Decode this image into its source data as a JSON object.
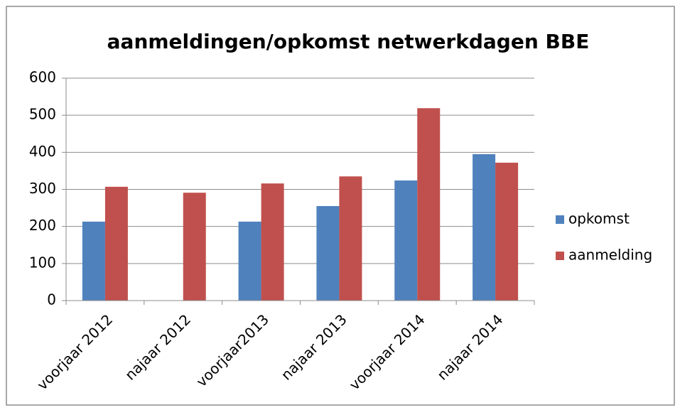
{
  "chart_data": {
    "type": "bar",
    "title": "aanmeldingen/opkomst netwerkdagen BBE",
    "categories": [
      "voorjaar 2012",
      "najaar 2012",
      "voorjaar2013",
      "najaar 2013",
      "voorjaar 2014",
      "najaar 2014"
    ],
    "series": [
      {
        "name": "opkomst",
        "color": "#4f81bd",
        "values": [
          213,
          null,
          213,
          255,
          324,
          395
        ]
      },
      {
        "name": "aanmelding",
        "color": "#c0504d",
        "values": [
          307,
          291,
          316,
          335,
          519,
          372
        ]
      }
    ],
    "ylim": [
      0,
      600
    ],
    "yticks": [
      0,
      100,
      200,
      300,
      400,
      500,
      600
    ],
    "grid": true,
    "legend": "right"
  }
}
